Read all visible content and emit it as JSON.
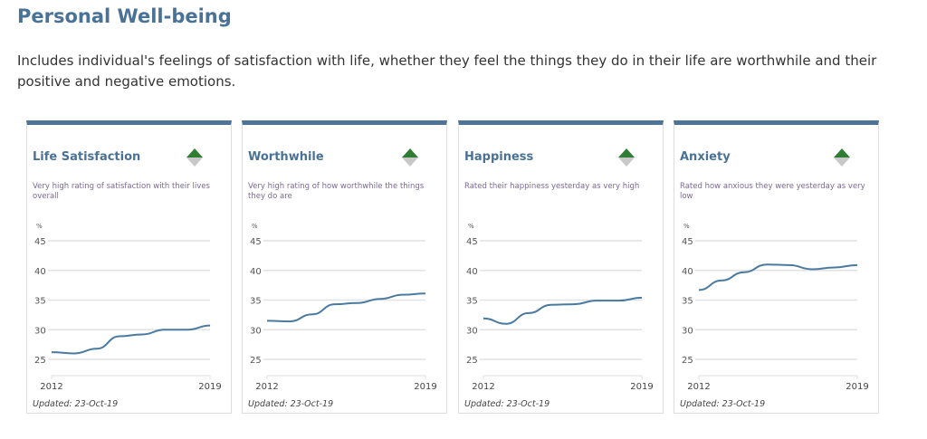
{
  "title": "Personal Well-being",
  "description": "Includes individual's feelings of satisfaction with life, whether they feel the things they do in their life are worthwhile and their positive and negative emotions.",
  "colors": {
    "accent": "#4d7396",
    "line": "#4a7aa0",
    "up": "#2e7d32",
    "down": "#c8c8c8"
  },
  "cards": [
    {
      "title": "Life Satisfaction",
      "description": "Very high rating of satisfaction with their lives overall",
      "trend_icon": "up-down-triangle-icon",
      "updated": "Updated: 23-Oct-19"
    },
    {
      "title": "Worthwhile",
      "description": "Very high rating of how worthwhile the things they do are",
      "trend_icon": "up-down-triangle-icon",
      "updated": "Updated: 23-Oct-19"
    },
    {
      "title": "Happiness",
      "description": "Rated their happiness yesterday as very high",
      "trend_icon": "up-down-triangle-icon",
      "updated": "Updated: 23-Oct-19"
    },
    {
      "title": "Anxiety",
      "description": "Rated how anxious they were yesterday as very low",
      "trend_icon": "up-down-triangle-icon",
      "updated": "Updated: 23-Oct-19"
    }
  ],
  "chart_data": [
    {
      "type": "line",
      "unit": "%",
      "x": [
        2012,
        2013,
        2014,
        2015,
        2016,
        2017,
        2018,
        2019
      ],
      "x_tick_labels": [
        "2012",
        "2019"
      ],
      "y_ticks": [
        "45",
        "40",
        "35",
        "30",
        "25"
      ],
      "ylim": [
        25,
        45
      ],
      "grid": true,
      "values": [
        26.2,
        26.0,
        26.8,
        28.9,
        29.2,
        30.0,
        30.0,
        30.7
      ]
    },
    {
      "type": "line",
      "unit": "%",
      "x": [
        2012,
        2013,
        2014,
        2015,
        2016,
        2017,
        2018,
        2019
      ],
      "x_tick_labels": [
        "2012",
        "2019"
      ],
      "y_ticks": [
        "45",
        "40",
        "35",
        "30",
        "25"
      ],
      "ylim": [
        25,
        45
      ],
      "grid": true,
      "values": [
        31.5,
        31.4,
        32.6,
        34.3,
        34.5,
        35.2,
        35.9,
        36.1
      ]
    },
    {
      "type": "line",
      "unit": "%",
      "x": [
        2012,
        2013,
        2014,
        2015,
        2016,
        2017,
        2018,
        2019
      ],
      "x_tick_labels": [
        "2012",
        "2019"
      ],
      "y_ticks": [
        "45",
        "40",
        "35",
        "30",
        "25"
      ],
      "ylim": [
        25,
        45
      ],
      "grid": true,
      "values": [
        31.9,
        31.0,
        32.8,
        34.2,
        34.3,
        34.9,
        34.9,
        35.4
      ]
    },
    {
      "type": "line",
      "unit": "%",
      "x": [
        2012,
        2013,
        2014,
        2015,
        2016,
        2017,
        2018,
        2019
      ],
      "x_tick_labels": [
        "2012",
        "2019"
      ],
      "y_ticks": [
        "45",
        "40",
        "35",
        "30",
        "25"
      ],
      "ylim": [
        25,
        45
      ],
      "grid": true,
      "values": [
        36.7,
        38.3,
        39.7,
        41.0,
        40.9,
        40.2,
        40.5,
        40.9
      ]
    }
  ]
}
